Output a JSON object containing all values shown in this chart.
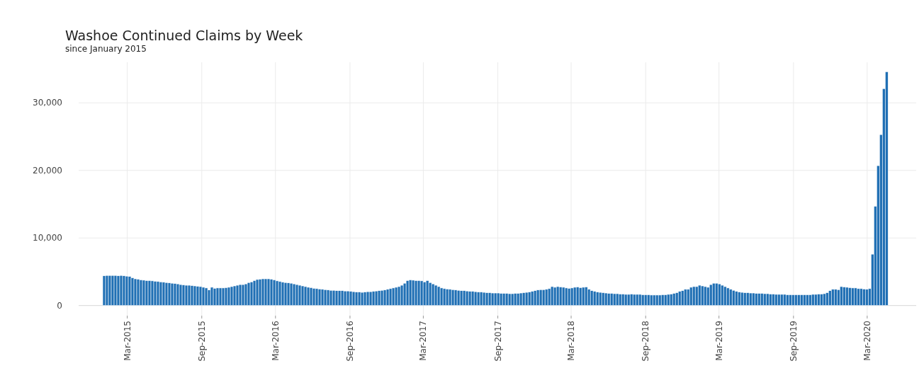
{
  "chart_data": {
    "type": "bar",
    "title": "Washoe Continued Claims by Week",
    "subtitle": "since January 2015",
    "x": [
      "2015-01-03",
      "2015-01-10",
      "2015-01-17",
      "2015-01-24",
      "2015-01-31",
      "2015-02-07",
      "2015-02-14",
      "2015-02-21",
      "2015-02-28",
      "2015-03-07",
      "2015-03-14",
      "2015-03-21",
      "2015-03-28",
      "2015-04-04",
      "2015-04-11",
      "2015-04-18",
      "2015-04-25",
      "2015-05-02",
      "2015-05-09",
      "2015-05-16",
      "2015-05-23",
      "2015-05-30",
      "2015-06-06",
      "2015-06-13",
      "2015-06-20",
      "2015-06-27",
      "2015-07-04",
      "2015-07-11",
      "2015-07-18",
      "2015-07-25",
      "2015-08-01",
      "2015-08-08",
      "2015-08-15",
      "2015-08-22",
      "2015-08-29",
      "2015-09-05",
      "2015-09-12",
      "2015-09-19",
      "2015-09-26",
      "2015-10-03",
      "2015-10-10",
      "2015-10-17",
      "2015-10-24",
      "2015-10-31",
      "2015-11-07",
      "2015-11-14",
      "2015-11-21",
      "2015-11-28",
      "2015-12-05",
      "2015-12-12",
      "2015-12-19",
      "2015-12-26",
      "2016-01-02",
      "2016-01-09",
      "2016-01-16",
      "2016-01-23",
      "2016-01-30",
      "2016-02-06",
      "2016-02-13",
      "2016-02-20",
      "2016-02-27",
      "2016-03-05",
      "2016-03-12",
      "2016-03-19",
      "2016-03-26",
      "2016-04-02",
      "2016-04-09",
      "2016-04-16",
      "2016-04-23",
      "2016-04-30",
      "2016-05-07",
      "2016-05-14",
      "2016-05-21",
      "2016-05-28",
      "2016-06-04",
      "2016-06-11",
      "2016-06-18",
      "2016-06-25",
      "2016-07-02",
      "2016-07-09",
      "2016-07-16",
      "2016-07-23",
      "2016-07-30",
      "2016-08-06",
      "2016-08-13",
      "2016-08-20",
      "2016-08-27",
      "2016-09-03",
      "2016-09-10",
      "2016-09-17",
      "2016-09-24",
      "2016-10-01",
      "2016-10-08",
      "2016-10-15",
      "2016-10-22",
      "2016-10-29",
      "2016-11-05",
      "2016-11-12",
      "2016-11-19",
      "2016-11-26",
      "2016-12-03",
      "2016-12-10",
      "2016-12-17",
      "2016-12-24",
      "2016-12-31",
      "2017-01-07",
      "2017-01-14",
      "2017-01-21",
      "2017-01-28",
      "2017-02-04",
      "2017-02-11",
      "2017-02-18",
      "2017-02-25",
      "2017-03-04",
      "2017-03-11",
      "2017-03-18",
      "2017-03-25",
      "2017-04-01",
      "2017-04-08",
      "2017-04-15",
      "2017-04-22",
      "2017-04-29",
      "2017-05-06",
      "2017-05-13",
      "2017-05-20",
      "2017-05-27",
      "2017-06-03",
      "2017-06-10",
      "2017-06-17",
      "2017-06-24",
      "2017-07-01",
      "2017-07-08",
      "2017-07-15",
      "2017-07-22",
      "2017-07-29",
      "2017-08-05",
      "2017-08-12",
      "2017-08-19",
      "2017-08-26",
      "2017-09-02",
      "2017-09-09",
      "2017-09-16",
      "2017-09-23",
      "2017-09-30",
      "2017-10-07",
      "2017-10-14",
      "2017-10-21",
      "2017-10-28",
      "2017-11-04",
      "2017-11-11",
      "2017-11-18",
      "2017-11-25",
      "2017-12-02",
      "2017-12-09",
      "2017-12-16",
      "2017-12-23",
      "2017-12-30",
      "2018-01-06",
      "2018-01-13",
      "2018-01-20",
      "2018-01-27",
      "2018-02-03",
      "2018-02-10",
      "2018-02-17",
      "2018-02-24",
      "2018-03-03",
      "2018-03-10",
      "2018-03-17",
      "2018-03-24",
      "2018-03-31",
      "2018-04-07",
      "2018-04-14",
      "2018-04-21",
      "2018-04-28",
      "2018-05-05",
      "2018-05-12",
      "2018-05-19",
      "2018-05-26",
      "2018-06-02",
      "2018-06-09",
      "2018-06-16",
      "2018-06-23",
      "2018-06-30",
      "2018-07-07",
      "2018-07-14",
      "2018-07-21",
      "2018-07-28",
      "2018-08-04",
      "2018-08-11",
      "2018-08-18",
      "2018-08-25",
      "2018-09-01",
      "2018-09-08",
      "2018-09-15",
      "2018-09-22",
      "2018-09-29",
      "2018-10-06",
      "2018-10-13",
      "2018-10-20",
      "2018-10-27",
      "2018-11-03",
      "2018-11-10",
      "2018-11-17",
      "2018-11-24",
      "2018-12-01",
      "2018-12-08",
      "2018-12-15",
      "2018-12-22",
      "2018-12-29",
      "2019-01-05",
      "2019-01-12",
      "2019-01-19",
      "2019-01-26",
      "2019-02-02",
      "2019-02-09",
      "2019-02-16",
      "2019-02-23",
      "2019-03-02",
      "2019-03-09",
      "2019-03-16",
      "2019-03-23",
      "2019-03-30",
      "2019-04-06",
      "2019-04-13",
      "2019-04-20",
      "2019-04-27",
      "2019-05-04",
      "2019-05-11",
      "2019-05-18",
      "2019-05-25",
      "2019-06-01",
      "2019-06-08",
      "2019-06-15",
      "2019-06-22",
      "2019-06-29",
      "2019-07-06",
      "2019-07-13",
      "2019-07-20",
      "2019-07-27",
      "2019-08-03",
      "2019-08-10",
      "2019-08-17",
      "2019-08-24",
      "2019-08-31",
      "2019-09-07",
      "2019-09-14",
      "2019-09-21",
      "2019-09-28",
      "2019-10-05",
      "2019-10-12",
      "2019-10-19",
      "2019-10-26",
      "2019-11-02",
      "2019-11-09",
      "2019-11-16",
      "2019-11-23",
      "2019-11-30",
      "2019-12-07",
      "2019-12-14",
      "2019-12-21",
      "2019-12-28",
      "2020-01-04",
      "2020-01-11",
      "2020-01-18",
      "2020-01-25",
      "2020-02-01",
      "2020-02-08",
      "2020-02-15",
      "2020-02-22",
      "2020-02-29",
      "2020-03-07",
      "2020-03-14",
      "2020-03-21",
      "2020-03-28",
      "2020-04-04",
      "2020-04-11",
      "2020-04-18"
    ],
    "series": [
      {
        "color": "#1f6fb4",
        "values": [
          4400,
          4450,
          4450,
          4450,
          4450,
          4400,
          4450,
          4400,
          4350,
          4300,
          4100,
          3950,
          3900,
          3800,
          3750,
          3700,
          3700,
          3650,
          3600,
          3550,
          3500,
          3450,
          3400,
          3350,
          3300,
          3250,
          3200,
          3100,
          3050,
          3000,
          3000,
          2950,
          2900,
          2850,
          2800,
          2700,
          2600,
          2300,
          2700,
          2550,
          2600,
          2600,
          2600,
          2650,
          2700,
          2800,
          2900,
          3000,
          3100,
          3100,
          3200,
          3400,
          3500,
          3700,
          3850,
          3900,
          3950,
          3950,
          3950,
          3900,
          3800,
          3650,
          3550,
          3450,
          3400,
          3350,
          3300,
          3200,
          3100,
          3000,
          2900,
          2800,
          2700,
          2650,
          2550,
          2500,
          2450,
          2400,
          2350,
          2300,
          2250,
          2250,
          2200,
          2200,
          2200,
          2150,
          2150,
          2100,
          2050,
          2000,
          2000,
          1950,
          2000,
          2050,
          2050,
          2100,
          2150,
          2200,
          2250,
          2300,
          2400,
          2500,
          2600,
          2700,
          2800,
          3000,
          3300,
          3700,
          3800,
          3750,
          3700,
          3700,
          3650,
          3500,
          3700,
          3400,
          3200,
          3000,
          2800,
          2600,
          2500,
          2450,
          2400,
          2350,
          2300,
          2250,
          2200,
          2200,
          2150,
          2100,
          2100,
          2050,
          2000,
          2000,
          1950,
          1900,
          1900,
          1850,
          1850,
          1850,
          1800,
          1800,
          1800,
          1750,
          1750,
          1800,
          1800,
          1850,
          1900,
          1950,
          2000,
          2100,
          2200,
          2300,
          2350,
          2350,
          2400,
          2500,
          2800,
          2700,
          2800,
          2750,
          2700,
          2600,
          2550,
          2600,
          2700,
          2750,
          2650,
          2700,
          2750,
          2400,
          2200,
          2100,
          2000,
          1950,
          1900,
          1850,
          1800,
          1800,
          1750,
          1750,
          1700,
          1700,
          1650,
          1650,
          1700,
          1650,
          1650,
          1650,
          1600,
          1600,
          1600,
          1550,
          1550,
          1550,
          1550,
          1600,
          1600,
          1650,
          1700,
          1800,
          1900,
          2100,
          2200,
          2400,
          2400,
          2700,
          2800,
          2800,
          3000,
          2900,
          2800,
          2700,
          3100,
          3300,
          3300,
          3200,
          3000,
          2800,
          2600,
          2400,
          2250,
          2100,
          2000,
          1950,
          1900,
          1900,
          1850,
          1850,
          1800,
          1800,
          1800,
          1750,
          1750,
          1700,
          1700,
          1650,
          1650,
          1650,
          1650,
          1600,
          1600,
          1600,
          1600,
          1600,
          1600,
          1600,
          1600,
          1600,
          1650,
          1650,
          1700,
          1700,
          1750,
          1900,
          2200,
          2400,
          2400,
          2350,
          2800,
          2750,
          2700,
          2650,
          2600,
          2600,
          2500,
          2500,
          2450,
          2400,
          2500,
          7600,
          14700,
          20700,
          25300,
          32100,
          34600
        ]
      }
    ],
    "xlim": [
      "2014-11-01",
      "2020-06-30"
    ],
    "xticks": [
      {
        "value": "2015-03-01",
        "label": "Mar-2015"
      },
      {
        "value": "2015-09-01",
        "label": "Sep-2015"
      },
      {
        "value": "2016-03-01",
        "label": "Mar-2016"
      },
      {
        "value": "2016-09-01",
        "label": "Sep-2016"
      },
      {
        "value": "2017-03-01",
        "label": "Mar-2017"
      },
      {
        "value": "2017-09-01",
        "label": "Sep-2017"
      },
      {
        "value": "2018-03-01",
        "label": "Mar-2018"
      },
      {
        "value": "2018-09-01",
        "label": "Sep-2018"
      },
      {
        "value": "2019-03-01",
        "label": "Mar-2019"
      },
      {
        "value": "2019-09-01",
        "label": "Sep-2019"
      },
      {
        "value": "2020-03-01",
        "label": "Mar-2020"
      }
    ],
    "ylim": [
      -1500,
      36000
    ],
    "yticks": [
      0,
      {
        "value": 10000,
        "label": "10,000"
      },
      {
        "value": 20000,
        "label": "20,000"
      },
      {
        "value": 30000,
        "label": "30,000"
      }
    ],
    "grid": true
  }
}
